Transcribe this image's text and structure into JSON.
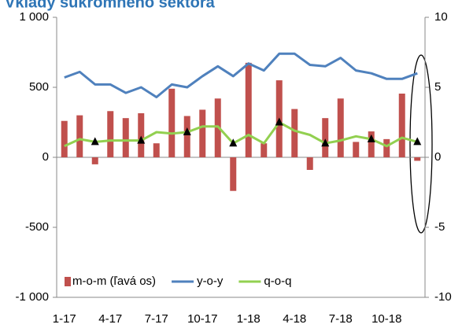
{
  "chart_data": {
    "type": "bar-line",
    "title": "Vklady súkromného sektora",
    "categories": [
      "1-17",
      null,
      null,
      "4-17",
      null,
      null,
      "7-17",
      null,
      null,
      "10-17",
      null,
      null,
      "1-18",
      null,
      null,
      "4-18",
      null,
      null,
      "7-18",
      null,
      null,
      "10-18",
      null,
      null
    ],
    "series": [
      {
        "name": "m-o-m (ľavá os)",
        "type": "bar",
        "color": "#c0504d",
        "axis": "y",
        "values": [
          260,
          300,
          -50,
          330,
          280,
          315,
          100,
          490,
          295,
          340,
          420,
          -240,
          675,
          100,
          550,
          345,
          -90,
          280,
          420,
          110,
          185,
          130,
          455,
          -25
        ]
      },
      {
        "name": "y-o-y",
        "type": "line",
        "color": "#4f81bd",
        "axis": "y2",
        "values": [
          5.7,
          6.1,
          5.2,
          5.2,
          4.6,
          5.0,
          4.3,
          5.2,
          5.0,
          5.8,
          6.5,
          5.8,
          6.7,
          6.2,
          7.4,
          7.4,
          6.6,
          6.5,
          7.1,
          6.2,
          6.0,
          5.6,
          5.6,
          6.0
        ]
      },
      {
        "name": "q-o-q",
        "type": "line",
        "color": "#92d050",
        "axis": "y2",
        "marker": "triangle",
        "values": [
          0.8,
          1.3,
          1.1,
          1.2,
          1.2,
          1.2,
          1.8,
          1.7,
          1.8,
          2.2,
          2.2,
          1.0,
          1.6,
          1.0,
          2.5,
          1.9,
          1.6,
          1.0,
          1.2,
          1.5,
          1.3,
          0.8,
          1.4,
          1.1
        ]
      }
    ],
    "ylim": [
      -1000,
      1000
    ],
    "yticks": [
      {
        "value": -1000,
        "label": "-1 000"
      },
      -500,
      0,
      500,
      {
        "value": 1000,
        "label": "1 000"
      }
    ],
    "y2lim": [
      -10,
      10
    ],
    "y2ticks": [
      -10,
      -5,
      0,
      5,
      10
    ],
    "legend": "bottom-left"
  }
}
